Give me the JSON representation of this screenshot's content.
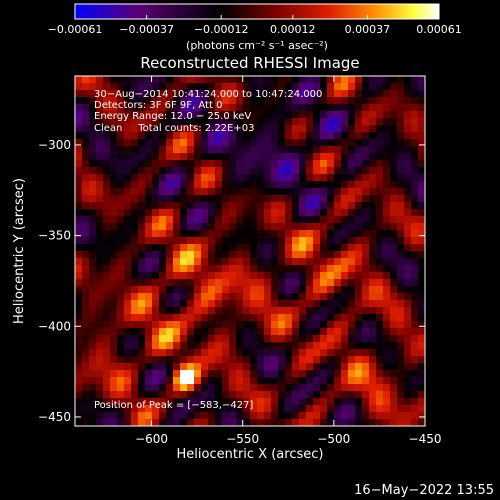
{
  "chart_data": {
    "type": "heatmap",
    "title": "Reconstructed RHESSI Image",
    "xlabel": "Heliocentric X (arcsec)",
    "ylabel": "Heliocentric Y (arcsec)",
    "xlim": [
      -642,
      -450
    ],
    "ylim": [
      -455,
      -262
    ],
    "x_ticks": [
      -600,
      -550,
      -500,
      -450
    ],
    "y_ticks": [
      -450,
      -400,
      -350,
      -300
    ],
    "x_tick_labels": [
      "−600",
      "−550",
      "−500",
      "−450"
    ],
    "y_tick_labels": [
      "−450",
      "−400",
      "−350",
      "−300"
    ],
    "colorbar": {
      "min": -0.00061,
      "max": 0.00061,
      "ticks": [
        -0.00061,
        -0.00037,
        -0.00012,
        0.00012,
        0.00037,
        0.00061
      ],
      "tick_labels": [
        "−0.00061",
        "−0.00037",
        "−0.00012",
        "0.00012",
        "0.00037",
        "0.00061"
      ],
      "units_label": "(photons cm⁻² s⁻¹ asec⁻²)",
      "colormap": [
        "#0000ff",
        "#5a0078",
        "#000000",
        "#7a0000",
        "#e01e00",
        "#ff8c00",
        "#ffff40",
        "#ffffff"
      ]
    },
    "annotations": [
      "30−Aug−2014 10:41:24.000 to 10:47:24.000",
      "Detectors: 3F 6F 9F, Att 0",
      "Energy Range: 12.0 − 25.0 keV",
      "Clean     Total counts: 2.22E+03"
    ],
    "peak_label": "Position of Peak = [−583,−427]",
    "peak_position": [
      -583,
      -427
    ],
    "grid": false
  },
  "footer": {
    "timestamp": "16−May−2022 13:55"
  }
}
